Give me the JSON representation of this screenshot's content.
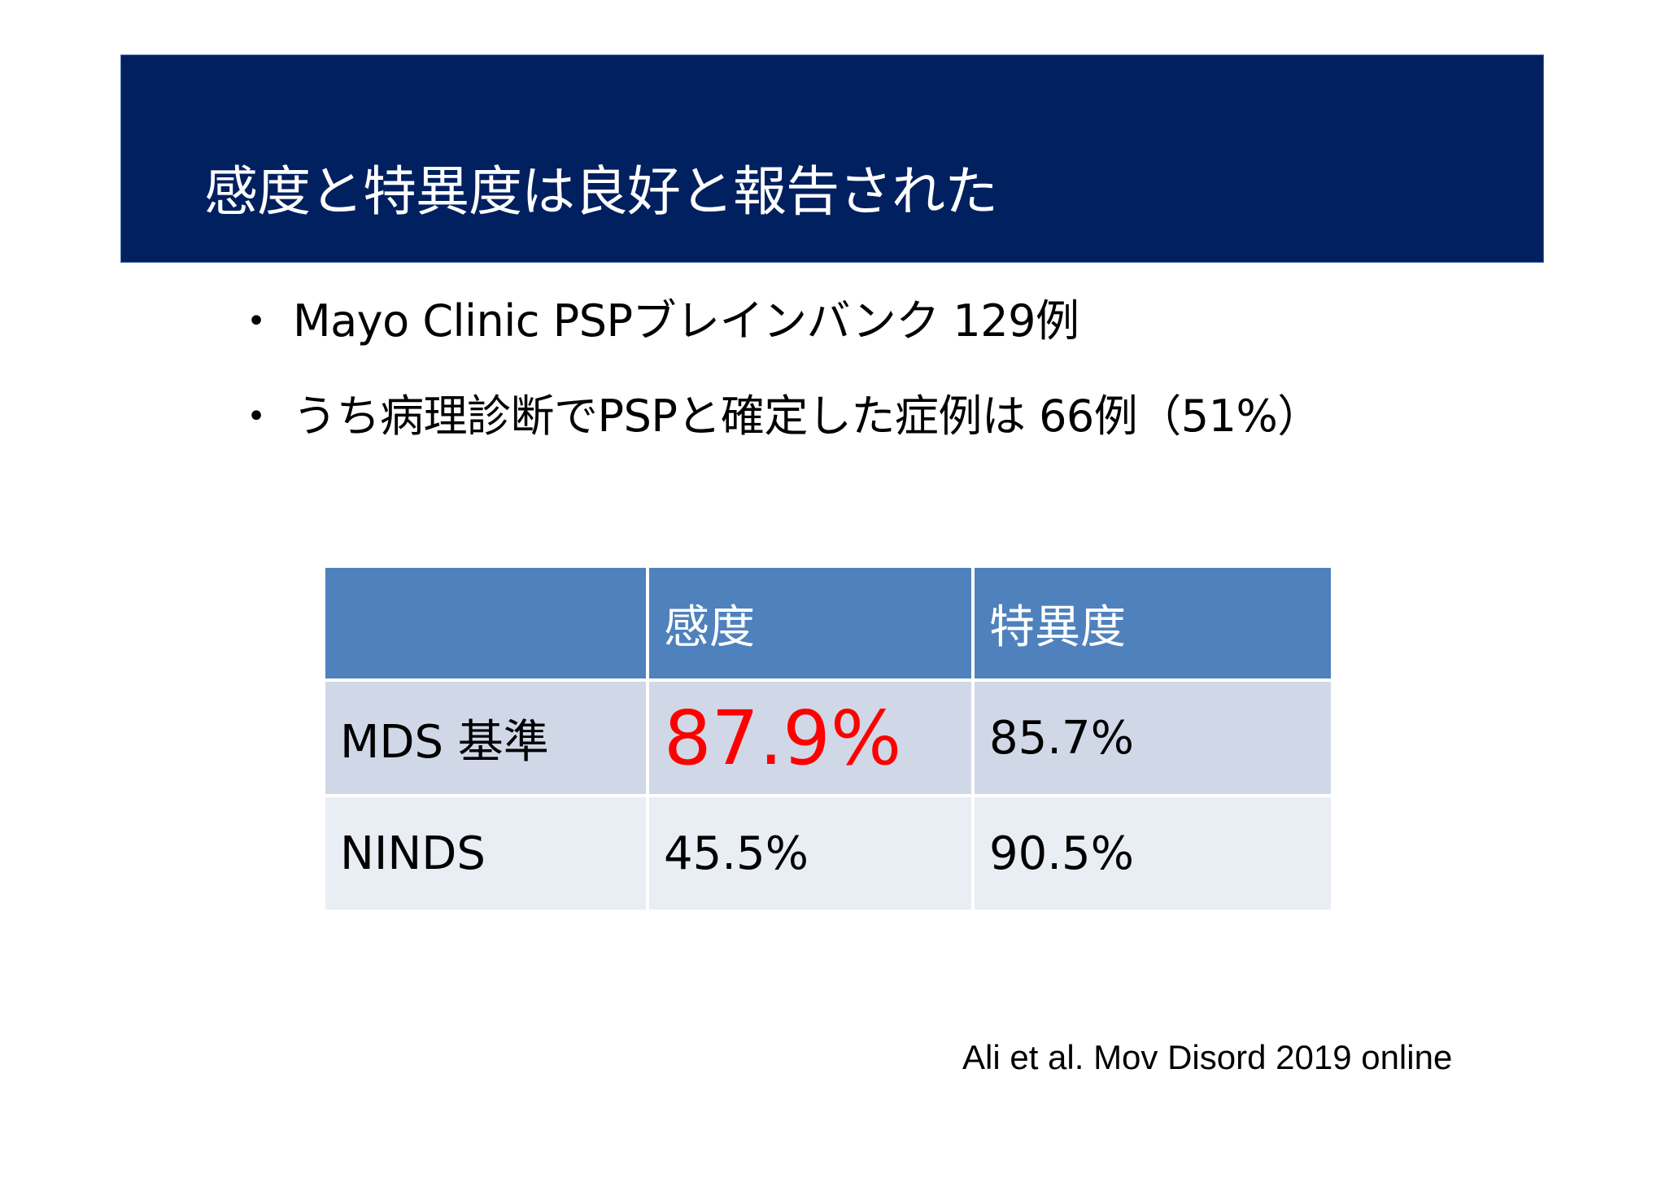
{
  "slide": {
    "title": "感度と特異度は良好と報告された",
    "bullets": [
      "Mayo Clinic PSPブレインバンク 129例",
      "うち病理診断でPSPと確定した症例は 66例（51%）"
    ],
    "bullet_marker": "•",
    "table": {
      "headers": [
        "",
        "感度",
        "特異度"
      ],
      "rows": [
        {
          "label": "MDS 基準",
          "sensitivity": "87.9%",
          "specificity": "85.7%"
        },
        {
          "label": "NINDS",
          "sensitivity": "45.5%",
          "specificity": "90.5%"
        }
      ],
      "highlight_color": "#ff0000"
    },
    "citation": "Ali et al. Mov Disord 2019 online"
  },
  "colors": {
    "title_band": "#002060",
    "table_header": "#4f81bd",
    "table_row_1": "#d0d8e8",
    "table_row_2": "#e9edf4"
  }
}
